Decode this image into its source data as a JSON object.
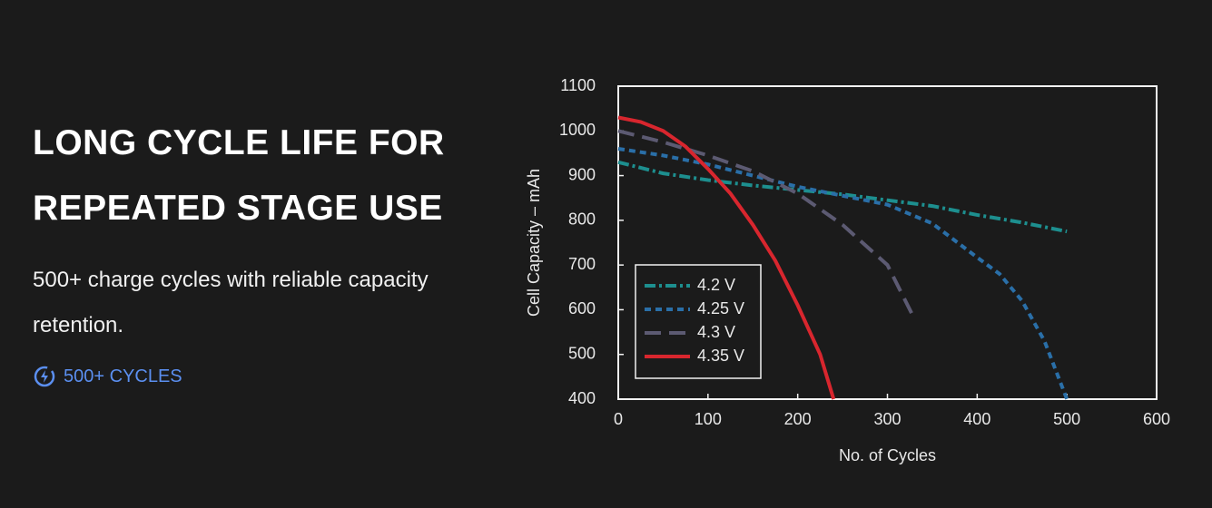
{
  "headline": [
    "LONG CYCLE LIFE FOR",
    "REPEATED STAGE USE"
  ],
  "description": "500+ charge cycles with reliable capacity retention.",
  "badge": "500+ CYCLES",
  "chart_data": {
    "type": "line",
    "x_label": "No. of Cycles",
    "y_label": "Cell Capacity – mAh",
    "xlim": [
      0,
      600
    ],
    "xticks": [
      0,
      100,
      200,
      300,
      400,
      500,
      600
    ],
    "ylim": [
      400,
      1100
    ],
    "yticks": [
      400,
      500,
      600,
      700,
      800,
      900,
      1000,
      1100
    ],
    "legend": "lower left",
    "series": [
      {
        "name": "4.2 V",
        "color": "#1d8f8f",
        "style": "dashdot",
        "x": [
          0,
          50,
          100,
          150,
          200,
          250,
          300,
          350,
          400,
          450,
          500
        ],
        "values": [
          930,
          905,
          890,
          878,
          868,
          858,
          845,
          832,
          812,
          795,
          775
        ]
      },
      {
        "name": "4.25 V",
        "color": "#2a6fa8",
        "style": "dashed",
        "x": [
          0,
          50,
          100,
          150,
          200,
          250,
          300,
          350,
          400,
          425,
          450,
          475,
          500
        ],
        "values": [
          960,
          945,
          925,
          900,
          875,
          855,
          835,
          793,
          717,
          680,
          620,
          530,
          400
        ]
      },
      {
        "name": "4.3 V",
        "color": "#5c5a72",
        "style": "longdash",
        "x": [
          0,
          50,
          100,
          150,
          200,
          250,
          300,
          330
        ],
        "values": [
          1000,
          975,
          945,
          910,
          860,
          790,
          700,
          580
        ]
      },
      {
        "name": "4.35 V",
        "color": "#d8262e",
        "style": "solid",
        "x": [
          0,
          25,
          50,
          75,
          100,
          125,
          150,
          175,
          200,
          225,
          240
        ],
        "values": [
          1030,
          1020,
          1000,
          965,
          915,
          860,
          790,
          710,
          610,
          500,
          400
        ]
      }
    ]
  }
}
